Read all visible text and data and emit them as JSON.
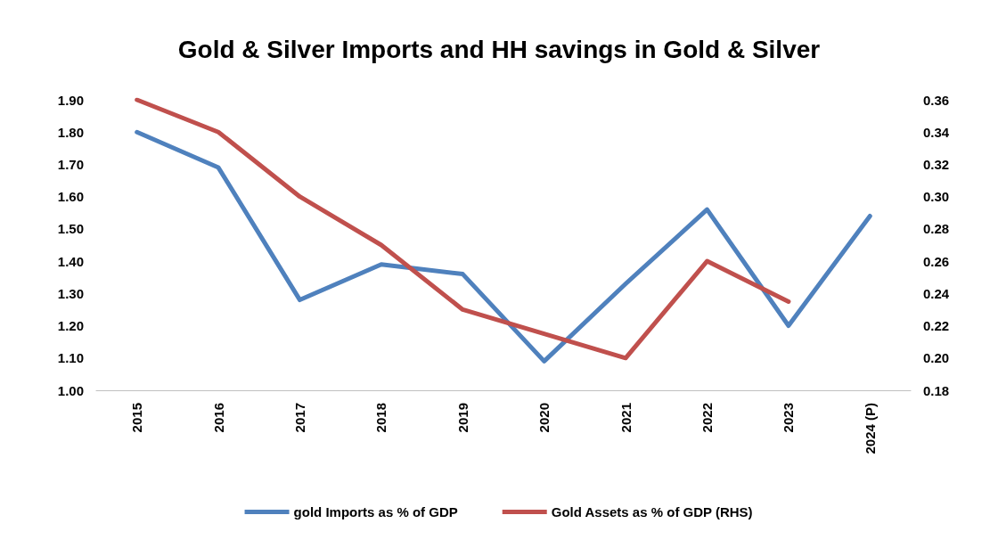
{
  "chart_data": {
    "type": "line",
    "title": "Gold & Silver Imports and HH savings in Gold & Silver",
    "categories": [
      "2015",
      "2016",
      "2017",
      "2018",
      "2019",
      "2020",
      "2021",
      "2022",
      "2023",
      "2024 (P)"
    ],
    "series": [
      {
        "name": "gold Imports as % of GDP",
        "color": "#4f81bd",
        "values": [
          1.8,
          1.69,
          1.28,
          1.39,
          1.36,
          1.09,
          1.33,
          1.56,
          1.2,
          1.54
        ]
      },
      {
        "name": "Gold Assets as % of GDP (RHS)",
        "color": "#c0504d",
        "axis": "y2",
        "values": [
          0.36,
          0.34,
          0.3,
          0.27,
          0.23,
          0.215,
          0.2,
          0.26,
          0.235,
          null
        ]
      }
    ],
    "ylim": [
      1.0,
      1.9
    ],
    "yticks": [
      {
        "value": 1.0,
        "label": "1.00"
      },
      {
        "value": 1.1,
        "label": "1.10"
      },
      {
        "value": 1.2,
        "label": "1.20"
      },
      {
        "value": 1.3,
        "label": "1.30"
      },
      {
        "value": 1.4,
        "label": "1.40"
      },
      {
        "value": 1.5,
        "label": "1.50"
      },
      {
        "value": 1.6,
        "label": "1.60"
      },
      {
        "value": 1.7,
        "label": "1.70"
      },
      {
        "value": 1.8,
        "label": "1.80"
      },
      {
        "value": 1.9,
        "label": "1.90"
      }
    ],
    "y2lim": [
      0.18,
      0.36
    ],
    "y2ticks": [
      0.18,
      {
        "value": 0.2,
        "label": "0.20"
      },
      0.22,
      0.24,
      0.26,
      0.28,
      {
        "value": 0.3,
        "label": "0.30"
      },
      0.32,
      0.34,
      0.36
    ],
    "grid": false,
    "legend": "bottom",
    "marker": "none",
    "line_style": "solid"
  }
}
